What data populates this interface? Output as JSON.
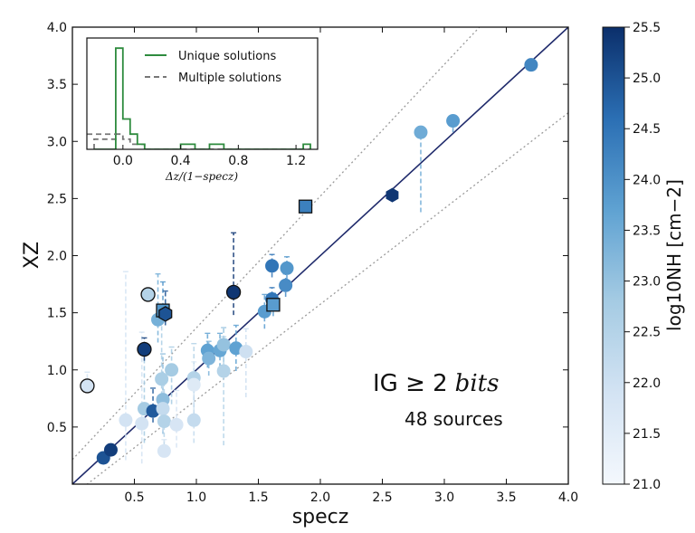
{
  "chart_data": {
    "type": "scatter",
    "xlabel": "specz",
    "ylabel": "XZ",
    "xlim": [
      0.0,
      4.0
    ],
    "ylim": [
      0.0,
      4.0
    ],
    "xticks": [
      "0.5",
      "1.0",
      "1.5",
      "2.0",
      "2.5",
      "3.0",
      "3.5",
      "4.0"
    ],
    "yticks": [
      "0.5",
      "1.0",
      "1.5",
      "2.0",
      "2.5",
      "3.0",
      "3.5",
      "4.0"
    ],
    "lines": [
      {
        "name": "one-to-one",
        "style": "solid",
        "color": "#1f2a6b",
        "slope": 1.0,
        "intercept": 0.0
      },
      {
        "name": "upper-bound",
        "style": "dotted",
        "color": "#9a9a9a",
        "upper": true
      },
      {
        "name": "lower-bound",
        "style": "dotted",
        "color": "#9a9a9a",
        "upper": false
      }
    ],
    "annotation": {
      "text": "IG ≥ 2",
      "italic": "bits",
      "sources": "48 sources"
    },
    "colorbar": {
      "label": "log10NH [cm−2]",
      "min": 21.0,
      "max": 25.5,
      "ticks": [
        "21.0",
        "21.5",
        "22.0",
        "22.5",
        "23.0",
        "23.5",
        "24.0",
        "24.5",
        "25.0",
        "25.5"
      ],
      "color_low": "#f4f8fd",
      "color_high": "#0b2f6b"
    },
    "points": [
      {
        "x": 0.12,
        "y": 0.86,
        "nh": 21.9,
        "marker": "circle",
        "edge": true,
        "err_lo": 0.0,
        "err_hi": 0.12
      },
      {
        "x": 0.25,
        "y": 0.23,
        "nh": 25.0,
        "marker": "circle",
        "edge": false,
        "err_lo": 0.0,
        "err_hi": 0.0
      },
      {
        "x": 0.31,
        "y": 0.3,
        "nh": 25.3,
        "marker": "circle",
        "edge": false,
        "err_lo": 0.0,
        "err_hi": 0.0
      },
      {
        "x": 0.43,
        "y": 0.56,
        "nh": 21.9,
        "marker": "circle",
        "edge": false,
        "err_lo": 0.35,
        "err_hi": 1.3
      },
      {
        "x": 0.56,
        "y": 0.53,
        "nh": 21.9,
        "marker": "circle",
        "edge": false,
        "err_lo": 0.35,
        "err_hi": 0.8
      },
      {
        "x": 0.58,
        "y": 0.66,
        "nh": 22.8,
        "marker": "circle",
        "edge": false,
        "err_lo": 0.3,
        "err_hi": 0.55
      },
      {
        "x": 0.58,
        "y": 1.18,
        "nh": 25.3,
        "marker": "circle",
        "edge": true,
        "err_lo": 0.1,
        "err_hi": 0.1
      },
      {
        "x": 0.61,
        "y": 1.66,
        "nh": 22.5,
        "marker": "circle",
        "edge": true,
        "err_lo": 0.05,
        "err_hi": 0.05
      },
      {
        "x": 0.65,
        "y": 0.64,
        "nh": 24.9,
        "marker": "circle",
        "edge": false,
        "err_lo": 0.1,
        "err_hi": 0.2
      },
      {
        "x": 0.69,
        "y": 1.44,
        "nh": 23.4,
        "marker": "circle",
        "edge": false,
        "err_lo": 0.2,
        "err_hi": 0.4
      },
      {
        "x": 0.72,
        "y": 0.92,
        "nh": 22.7,
        "marker": "circle",
        "edge": false,
        "err_lo": 0.4,
        "err_hi": 0.5
      },
      {
        "x": 0.73,
        "y": 0.74,
        "nh": 23.1,
        "marker": "circle",
        "edge": false,
        "err_lo": 0.3,
        "err_hi": 0.4
      },
      {
        "x": 0.73,
        "y": 0.66,
        "nh": 22.2,
        "marker": "circle",
        "edge": false,
        "err_lo": 0.2,
        "err_hi": 0.3
      },
      {
        "x": 0.74,
        "y": 0.55,
        "nh": 22.5,
        "marker": "circle",
        "edge": false,
        "err_lo": 0.2,
        "err_hi": 0.4
      },
      {
        "x": 0.74,
        "y": 0.29,
        "nh": 21.8,
        "marker": "circle",
        "edge": false,
        "err_lo": 0.05,
        "err_hi": 0.1
      },
      {
        "x": 0.73,
        "y": 1.52,
        "nh": 23.9,
        "marker": "square",
        "edge": true,
        "err_lo": 0.1,
        "err_hi": 0.25
      },
      {
        "x": 0.75,
        "y": 1.49,
        "nh": 25.0,
        "marker": "hexagon",
        "edge": true,
        "err_lo": 0.1,
        "err_hi": 0.2
      },
      {
        "x": 0.8,
        "y": 1.0,
        "nh": 22.8,
        "marker": "circle",
        "edge": false,
        "err_lo": 0.3,
        "err_hi": 0.2
      },
      {
        "x": 0.84,
        "y": 0.52,
        "nh": 21.8,
        "marker": "circle",
        "edge": false,
        "err_lo": 0.2,
        "err_hi": 0.3
      },
      {
        "x": 0.98,
        "y": 0.93,
        "nh": 22.5,
        "marker": "circle",
        "edge": false,
        "err_lo": 0.4,
        "err_hi": 0.3
      },
      {
        "x": 0.98,
        "y": 0.87,
        "nh": 21.6,
        "marker": "circle",
        "edge": false,
        "err_lo": 0.3,
        "err_hi": 0.2
      },
      {
        "x": 0.98,
        "y": 0.56,
        "nh": 22.2,
        "marker": "circle",
        "edge": false,
        "err_lo": 0.2,
        "err_hi": 0.3
      },
      {
        "x": 1.09,
        "y": 1.17,
        "nh": 23.7,
        "marker": "circle",
        "edge": false,
        "err_lo": 0.15,
        "err_hi": 0.15
      },
      {
        "x": 1.1,
        "y": 1.1,
        "nh": 23.3,
        "marker": "circle",
        "edge": false,
        "err_lo": 0.15,
        "err_hi": 0.15
      },
      {
        "x": 1.19,
        "y": 1.17,
        "nh": 23.6,
        "marker": "circle",
        "edge": false,
        "err_lo": 0.15,
        "err_hi": 0.15
      },
      {
        "x": 1.22,
        "y": 1.22,
        "nh": 23.0,
        "marker": "circle",
        "edge": false,
        "err_lo": 0.15,
        "err_hi": 0.15
      },
      {
        "x": 1.22,
        "y": 0.99,
        "nh": 22.5,
        "marker": "circle",
        "edge": false,
        "err_lo": 0.65,
        "err_hi": 0.3
      },
      {
        "x": 1.3,
        "y": 1.68,
        "nh": 25.4,
        "marker": "circle",
        "edge": true,
        "err_lo": 0.2,
        "err_hi": 0.52
      },
      {
        "x": 1.32,
        "y": 1.19,
        "nh": 23.7,
        "marker": "circle",
        "edge": false,
        "err_lo": 0.2,
        "err_hi": 0.2
      },
      {
        "x": 1.4,
        "y": 1.16,
        "nh": 22.0,
        "marker": "circle",
        "edge": false,
        "err_lo": 0.4,
        "err_hi": 0.2
      },
      {
        "x": 1.55,
        "y": 1.51,
        "nh": 23.8,
        "marker": "circle",
        "edge": false,
        "err_lo": 0.15,
        "err_hi": 0.15
      },
      {
        "x": 1.61,
        "y": 1.91,
        "nh": 24.5,
        "marker": "circle",
        "edge": false,
        "err_lo": 0.1,
        "err_hi": 0.1
      },
      {
        "x": 1.61,
        "y": 1.62,
        "nh": 24.5,
        "marker": "circle",
        "edge": false,
        "err_lo": 0.1,
        "err_hi": 0.1
      },
      {
        "x": 1.62,
        "y": 1.57,
        "nh": 23.8,
        "marker": "square",
        "edge": true,
        "err_lo": 0.1,
        "err_hi": 0.1
      },
      {
        "x": 1.72,
        "y": 1.74,
        "nh": 24.1,
        "marker": "circle",
        "edge": false,
        "err_lo": 0.1,
        "err_hi": 0.1
      },
      {
        "x": 1.73,
        "y": 1.89,
        "nh": 23.9,
        "marker": "circle",
        "edge": false,
        "err_lo": 0.1,
        "err_hi": 0.1
      },
      {
        "x": 1.88,
        "y": 2.43,
        "nh": 24.3,
        "marker": "square",
        "edge": true,
        "err_lo": 0.0,
        "err_hi": 0.0
      },
      {
        "x": 2.58,
        "y": 2.53,
        "nh": 25.4,
        "marker": "hexagon",
        "edge": false,
        "err_lo": 0.0,
        "err_hi": 0.0
      },
      {
        "x": 2.81,
        "y": 3.08,
        "nh": 23.5,
        "marker": "circle",
        "edge": false,
        "err_lo": 0.7,
        "err_hi": 0.0
      },
      {
        "x": 3.07,
        "y": 3.18,
        "nh": 23.8,
        "marker": "circle",
        "edge": false,
        "err_lo": 0.1,
        "err_hi": 0.0
      },
      {
        "x": 3.7,
        "y": 3.67,
        "nh": 24.2,
        "marker": "circle",
        "edge": false,
        "err_lo": 0.0,
        "err_hi": 0.0
      }
    ],
    "inset": {
      "xlabel": "Δz/(1−specz)",
      "xlim": [
        -0.25,
        1.35
      ],
      "ylim": [
        0,
        22
      ],
      "xticks": [
        "0.0",
        "0.4",
        "0.8",
        "1.2"
      ],
      "legend": [
        {
          "label": "Unique solutions",
          "color": "#2e8b3e",
          "style": "solid"
        },
        {
          "label": "Multiple solutions",
          "color": "#777777",
          "style": "dashed"
        }
      ],
      "bin_edges": [
        -0.2,
        -0.15,
        -0.1,
        -0.05,
        0.0,
        0.05,
        0.1,
        0.15,
        0.2,
        0.25,
        0.3,
        0.35,
        0.4,
        0.45,
        0.5,
        0.55,
        0.6,
        0.65,
        0.7,
        0.75,
        0.8,
        0.85,
        0.9,
        0.95,
        1.0,
        1.05,
        1.1,
        1.15,
        1.2,
        1.25,
        1.3
      ],
      "unique_counts": [
        0,
        0,
        0,
        20,
        6,
        3,
        1,
        0,
        0,
        0,
        0,
        0,
        1,
        1,
        0,
        0,
        1,
        1,
        0,
        0,
        0,
        0,
        0,
        0,
        0,
        0,
        0,
        0,
        0,
        1
      ],
      "multiple_counts": [
        2,
        2,
        2,
        3,
        2,
        1,
        1,
        0,
        0,
        0,
        0,
        0,
        0,
        0,
        0,
        0,
        0,
        0,
        0,
        0,
        0,
        0,
        0,
        0,
        0,
        0,
        0,
        0,
        0,
        0
      ]
    }
  }
}
